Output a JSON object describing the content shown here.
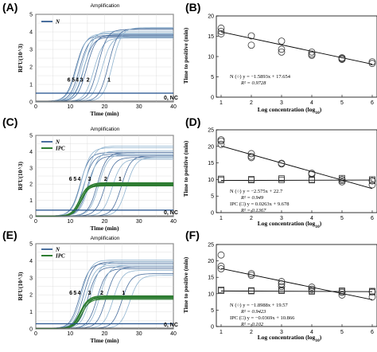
{
  "panels": {
    "A": {
      "letter": "(A)",
      "title": "Amplification"
    },
    "B": {
      "letter": "(B)"
    },
    "C": {
      "letter": "(C)",
      "title": "Amplification"
    },
    "D": {
      "letter": "(D)"
    },
    "E": {
      "letter": "(E)",
      "title": "Amplification"
    },
    "F": {
      "letter": "(F)"
    }
  },
  "colors": {
    "n_curve": "#4a6f9e",
    "n_curve_light": "#8fb3cf",
    "ipc_curve": "#2e7d32",
    "threshold": "#1f4e8c",
    "nc_line": "#555555",
    "trend_line": "#000000"
  },
  "chart_data": [
    {
      "panel": "A",
      "type": "line",
      "title": "Amplification",
      "xlabel": "Time (min)",
      "ylabel": "RFU(10^3)",
      "xlim": [
        0,
        40
      ],
      "ylim": [
        0,
        5
      ],
      "xticks": [
        0,
        10,
        20,
        30,
        40
      ],
      "yticks": [
        0,
        1,
        2,
        3,
        4,
        5
      ],
      "grid": true,
      "legend": [
        "N"
      ],
      "legend_position": "top-left",
      "threshold": 0.5,
      "curve_labels": [
        {
          "text": "6",
          "x": 9.6,
          "y": 1.15
        },
        {
          "text": "5",
          "x": 10.9,
          "y": 1.15
        },
        {
          "text": "4",
          "x": 12.0,
          "y": 1.15
        },
        {
          "text": "3",
          "x": 13.3,
          "y": 1.15
        },
        {
          "text": "2",
          "x": 15.2,
          "y": 1.15
        },
        {
          "text": "1",
          "x": 21.3,
          "y": 1.15
        }
      ],
      "nc_label": "0, NC",
      "series": [
        {
          "name": "N",
          "replicates": [
            {
              "tt": 8.6,
              "plateau": 3.75
            },
            {
              "tt": 8.9,
              "plateau": 3.85
            },
            {
              "tt": 9.7,
              "plateau": 3.7
            },
            {
              "tt": 10.3,
              "plateau": 3.9
            },
            {
              "tt": 10.9,
              "plateau": 3.65
            },
            {
              "tt": 11.2,
              "plateau": 4.0
            },
            {
              "tt": 11.8,
              "plateau": 3.8
            },
            {
              "tt": 13.9,
              "plateau": 3.6
            },
            {
              "tt": 15.1,
              "plateau": 4.1
            },
            {
              "tt": 16.2,
              "plateau": 3.7
            },
            {
              "tt": 18.1,
              "plateau": 4.15
            },
            {
              "tt": 19.3,
              "plateau": 4.2
            }
          ]
        }
      ]
    },
    {
      "panel": "B",
      "type": "scatter",
      "xlabel": "Log concentration (log10)",
      "ylabel": "Time to positive (min)",
      "xlim": [
        1,
        6
      ],
      "ylim": [
        0,
        20
      ],
      "xticks": [
        1,
        2,
        3,
        4,
        5,
        6
      ],
      "yticks": [
        0,
        5,
        10,
        15,
        20
      ],
      "series": [
        {
          "name": "N",
          "marker": "circle",
          "points": [
            [
              1,
              16.2
            ],
            [
              1,
              17.0
            ],
            [
              1,
              15.6
            ],
            [
              2,
              15.1
            ],
            [
              2,
              12.8
            ],
            [
              3,
              13.8
            ],
            [
              3,
              11.8
            ],
            [
              3,
              11.1
            ],
            [
              4,
              11.1
            ],
            [
              4,
              10.3
            ],
            [
              4,
              10.6
            ],
            [
              5,
              9.7
            ],
            [
              5,
              9.3
            ],
            [
              5,
              9.5
            ],
            [
              6,
              8.7
            ],
            [
              6,
              8.3
            ]
          ],
          "fit": {
            "slope": -1.5893,
            "intercept": 17.654
          }
        }
      ],
      "annotations": [
        {
          "label": "N (○) y = −1.5893x + 17.654",
          "r2": "R² = 0.9728"
        }
      ]
    },
    {
      "panel": "C",
      "type": "line",
      "title": "Amplification",
      "xlabel": "Time (min)",
      "ylabel": "RFU(10^3)",
      "xlim": [
        0,
        40
      ],
      "ylim": [
        0,
        5
      ],
      "xticks": [
        0,
        10,
        20,
        30,
        40
      ],
      "yticks": [
        0,
        1,
        2,
        3,
        4,
        5
      ],
      "grid": true,
      "legend": [
        "N",
        "IPC"
      ],
      "legend_position": "top-left",
      "threshold": 0.4,
      "curve_labels": [
        {
          "text": "6",
          "x": 10.1,
          "y": 2.2
        },
        {
          "text": "5",
          "x": 11.4,
          "y": 2.2
        },
        {
          "text": "4",
          "x": 12.6,
          "y": 2.2
        },
        {
          "text": "3",
          "x": 15.6,
          "y": 2.2
        },
        {
          "text": "2",
          "x": 20.3,
          "y": 2.2
        },
        {
          "text": "1",
          "x": 24.5,
          "y": 2.2
        }
      ],
      "nc_label": "0, NC",
      "series": [
        {
          "name": "N",
          "replicates": [
            {
              "tt": 9.9,
              "plateau": 3.9
            },
            {
              "tt": 10.2,
              "plateau": 4.2
            },
            {
              "tt": 11.0,
              "plateau": 3.8
            },
            {
              "tt": 11.4,
              "plateau": 4.3
            },
            {
              "tt": 12.1,
              "plateau": 3.7
            },
            {
              "tt": 12.6,
              "plateau": 4.0
            },
            {
              "tt": 14.9,
              "plateau": 3.9
            },
            {
              "tt": 15.3,
              "plateau": 3.8
            },
            {
              "tt": 17.1,
              "plateau": 3.6
            },
            {
              "tt": 19.2,
              "plateau": 3.5
            },
            {
              "tt": 21.9,
              "plateau": 3.7
            },
            {
              "tt": 23.4,
              "plateau": 3.6
            }
          ]
        },
        {
          "name": "IPC",
          "replicates": [
            {
              "tt": 9.6,
              "plateau": 1.9
            },
            {
              "tt": 9.8,
              "plateau": 2.0
            },
            {
              "tt": 10.0,
              "plateau": 1.85
            },
            {
              "tt": 10.1,
              "plateau": 1.95
            },
            {
              "tt": 10.3,
              "plateau": 1.9
            },
            {
              "tt": 10.4,
              "plateau": 2.05
            }
          ]
        }
      ]
    },
    {
      "panel": "D",
      "type": "scatter",
      "xlabel": "Log concentration (log10)",
      "ylabel": "Time to positive (min)",
      "xlim": [
        1,
        6
      ],
      "ylim": [
        0,
        25
      ],
      "xticks": [
        1,
        2,
        3,
        4,
        5,
        6
      ],
      "yticks": [
        0,
        5,
        10,
        15,
        20,
        25
      ],
      "series": [
        {
          "name": "N",
          "marker": "circle",
          "points": [
            [
              1,
              21.6
            ],
            [
              1,
              20.6
            ],
            [
              1,
              22.0
            ],
            [
              2,
              17.8
            ],
            [
              2,
              17.0
            ],
            [
              2,
              16.6
            ],
            [
              3,
              14.9
            ],
            [
              3,
              14.7
            ],
            [
              4,
              11.9
            ],
            [
              4,
              11.6
            ],
            [
              5,
              10.0
            ],
            [
              5,
              9.3
            ],
            [
              6,
              9.6
            ],
            [
              6,
              8.4
            ]
          ],
          "fit": {
            "slope": -2.575,
            "intercept": 22.7
          }
        },
        {
          "name": "IPC",
          "marker": "square",
          "points": [
            [
              1,
              9.9
            ],
            [
              1,
              10.2
            ],
            [
              2,
              9.8
            ],
            [
              2,
              10.1
            ],
            [
              3,
              9.9
            ],
            [
              3,
              10.3
            ],
            [
              4,
              9.8
            ],
            [
              4,
              10.0
            ],
            [
              5,
              9.7
            ],
            [
              5,
              10.4
            ],
            [
              6,
              9.6
            ],
            [
              6,
              10.0
            ]
          ],
          "fit": {
            "slope": 0.0263,
            "intercept": 9.678
          }
        }
      ],
      "annotations": [
        {
          "label": "N (○) y = −2.575x + 22.7",
          "r2": "R² = 0.949"
        },
        {
          "label": "IPC (□) y = 0.0263x + 9.678",
          "r2": "R² = 0.1367"
        }
      ]
    },
    {
      "panel": "E",
      "type": "line",
      "title": "Amplification",
      "xlabel": "Time (min)",
      "ylabel": "RFU(10^3)",
      "xlim": [
        0,
        40
      ],
      "ylim": [
        0,
        5
      ],
      "xticks": [
        0,
        10,
        20,
        30,
        40
      ],
      "yticks": [
        0,
        1,
        2,
        3,
        4,
        5
      ],
      "grid": true,
      "legend": [
        "N",
        "IPC"
      ],
      "legend_position": "top-left",
      "threshold": 0.3,
      "curve_labels": [
        {
          "text": "6",
          "x": 10.2,
          "y": 2.0
        },
        {
          "text": "5",
          "x": 11.4,
          "y": 2.0
        },
        {
          "text": "4",
          "x": 12.6,
          "y": 2.0
        },
        {
          "text": "3",
          "x": 15.6,
          "y": 2.0
        },
        {
          "text": "2",
          "x": 19.2,
          "y": 2.0
        },
        {
          "text": "1",
          "x": 25.5,
          "y": 2.0
        }
      ],
      "nc_label": "0, NC",
      "series": [
        {
          "name": "N",
          "replicates": [
            {
              "tt": 9.8,
              "plateau": 3.8
            },
            {
              "tt": 10.3,
              "plateau": 4.0
            },
            {
              "tt": 10.9,
              "plateau": 3.9
            },
            {
              "tt": 11.5,
              "plateau": 3.7
            },
            {
              "tt": 12.2,
              "plateau": 3.6
            },
            {
              "tt": 13.0,
              "plateau": 3.9
            },
            {
              "tt": 14.8,
              "plateau": 3.5
            },
            {
              "tt": 15.6,
              "plateau": 3.7
            },
            {
              "tt": 17.5,
              "plateau": 3.6
            },
            {
              "tt": 19.5,
              "plateau": 3.4
            },
            {
              "tt": 22.0,
              "plateau": 3.2
            },
            {
              "tt": 24.3,
              "plateau": 3.1
            }
          ]
        },
        {
          "name": "IPC",
          "replicates": [
            {
              "tt": 9.7,
              "plateau": 1.75
            },
            {
              "tt": 9.9,
              "plateau": 1.85
            },
            {
              "tt": 10.1,
              "plateau": 1.8
            },
            {
              "tt": 10.2,
              "plateau": 1.9
            },
            {
              "tt": 10.4,
              "plateau": 1.7
            },
            {
              "tt": 10.6,
              "plateau": 1.8
            }
          ]
        }
      ]
    },
    {
      "panel": "F",
      "type": "scatter",
      "xlabel": "Log concentration (log10)",
      "ylabel": "Time to positive (min)",
      "xlim": [
        1,
        6
      ],
      "ylim": [
        0,
        25
      ],
      "xticks": [
        1,
        2,
        3,
        4,
        5,
        6
      ],
      "yticks": [
        0,
        5,
        10,
        15,
        20,
        25
      ],
      "series": [
        {
          "name": "N",
          "marker": "circle",
          "points": [
            [
              1,
              21.8
            ],
            [
              1,
              18.4
            ],
            [
              1,
              17.6
            ],
            [
              2,
              16.1
            ],
            [
              2,
              15.6
            ],
            [
              3,
              13.7
            ],
            [
              3,
              13.0
            ],
            [
              3,
              12.2
            ],
            [
              4,
              12.0
            ],
            [
              4,
              11.4
            ],
            [
              5,
              10.4
            ],
            [
              5,
              9.6
            ],
            [
              6,
              10.6
            ],
            [
              6,
              9.0
            ]
          ],
          "fit": {
            "slope": -1.8988,
            "intercept": 19.57
          }
        },
        {
          "name": "IPC",
          "marker": "square",
          "points": [
            [
              1,
              10.9
            ],
            [
              1,
              11.2
            ],
            [
              2,
              10.8
            ],
            [
              2,
              11.0
            ],
            [
              3,
              10.9
            ],
            [
              3,
              11.1
            ],
            [
              4,
              10.7
            ],
            [
              4,
              11.0
            ],
            [
              5,
              10.6
            ],
            [
              5,
              10.9
            ],
            [
              6,
              10.5
            ],
            [
              6,
              10.8
            ]
          ],
          "fit": {
            "slope": -0.0369,
            "intercept": 10.866
          }
        }
      ],
      "annotations": [
        {
          "label": "N (○) y = −1.8988x + 19.57",
          "r2": "R² = 0.9423"
        },
        {
          "label": "IPC (□) y = −0.0369x + 10.866",
          "r2": "R² = 0.102"
        }
      ]
    }
  ]
}
